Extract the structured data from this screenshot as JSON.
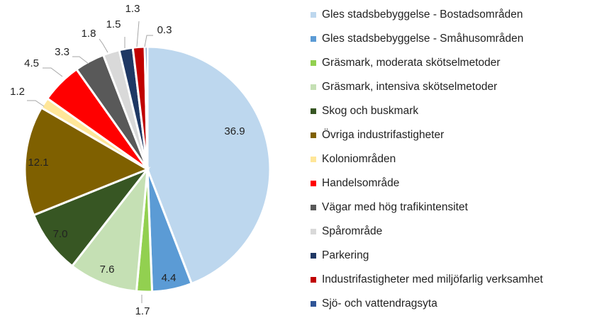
{
  "chart_data": {
    "type": "pie",
    "title": "",
    "legend_position": "right",
    "labels": [
      "Gles stadsbebyggelse - Bostadsområden",
      "Gles stadsbebyggelse - Småhusområden",
      "Gräsmark, moderata skötselmetoder",
      "Gräsmark, intensiva skötselmetoder",
      "Skog och buskmark",
      "Övriga industrifastigheter",
      "Koloniområden",
      "Handelsområde",
      "Vägar med hög trafikintensitet",
      "Spårområde",
      "Parkering",
      "Industrifastigheter med miljöfarlig verksamhet",
      "Sjö- och vattendragsyta"
    ],
    "values": [
      36.9,
      4.4,
      1.7,
      7.6,
      7.0,
      12.1,
      1.2,
      4.5,
      3.3,
      1.8,
      1.5,
      1.3,
      0.3
    ],
    "value_labels": [
      "36.9",
      "4.4",
      "1.7",
      "7.6",
      "7.0",
      "12.1",
      "1.2",
      "4.5",
      "3.3",
      "1.8",
      "1.5",
      "1.3",
      "0.3"
    ],
    "colors": [
      "#bdd7ee",
      "#5b9bd5",
      "#92d050",
      "#c5e0b4",
      "#375623",
      "#7f6000",
      "#ffe699",
      "#ff0000",
      "#595959",
      "#d9d9d9",
      "#1f3864",
      "#c00000",
      "#2f5597"
    ]
  }
}
